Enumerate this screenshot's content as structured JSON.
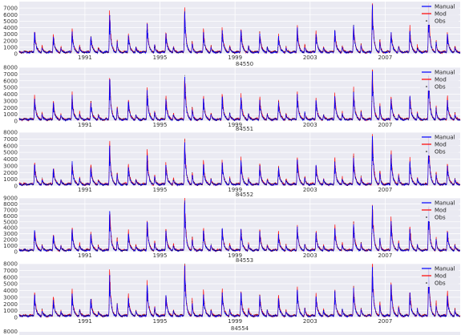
{
  "colors": {
    "background": "#eaeaf2",
    "grid": "#ffffff",
    "manual": "#0000ff",
    "mod": "#ff0000",
    "obs": "#000000"
  },
  "chart_data": [
    {
      "type": "line",
      "title": "",
      "ylim": [
        0,
        8000
      ],
      "ytick_labels": [
        "0",
        "1000",
        "2000",
        "3000",
        "4000",
        "5000",
        "6000",
        "7000"
      ],
      "xlim": [
        1987.5,
        2011.0
      ],
      "xtick_labels": [
        "1991",
        "1995",
        "1999",
        "2003",
        "2007"
      ],
      "legend": {
        "placement": "top-right",
        "entries": [
          "Manual",
          "Mod",
          "Obs"
        ]
      },
      "grid": true,
      "annual_peaks": [
        {
          "year": 1988,
          "value": 3300
        },
        {
          "year": 1989,
          "value": 2600
        },
        {
          "year": 1990,
          "value": 3400
        },
        {
          "year": 1991,
          "value": 2600
        },
        {
          "year": 1992,
          "value": 5900
        },
        {
          "year": 1993,
          "value": 2800
        },
        {
          "year": 1994,
          "value": 4600
        },
        {
          "year": 1995,
          "value": 3100
        },
        {
          "year": 1996,
          "value": 6200
        },
        {
          "year": 1997,
          "value": 3300
        },
        {
          "year": 1998,
          "value": 3600
        },
        {
          "year": 1999,
          "value": 3600
        },
        {
          "year": 2000,
          "value": 3100
        },
        {
          "year": 2001,
          "value": 2700
        },
        {
          "year": 2002,
          "value": 3900
        },
        {
          "year": 2003,
          "value": 3000
        },
        {
          "year": 2004,
          "value": 3600
        },
        {
          "year": 2005,
          "value": 4200
        },
        {
          "year": 2006,
          "value": 7300
        },
        {
          "year": 2007,
          "value": 3300
        },
        {
          "year": 2008,
          "value": 3500
        },
        {
          "year": 2009,
          "value": 6500
        },
        {
          "year": 2010,
          "value": 3000
        }
      ]
    },
    {
      "type": "line",
      "title": "84550",
      "ylim": [
        0,
        8000
      ],
      "ytick_labels": [
        "0",
        "1000",
        "2000",
        "3000",
        "4000",
        "5000",
        "6000",
        "7000",
        "8000"
      ],
      "xlim": [
        1987.5,
        2011.0
      ],
      "xtick_labels": [
        "1991",
        "1995",
        "1999",
        "2003",
        "2007"
      ],
      "legend": {
        "placement": "top-right",
        "entries": [
          "Manual",
          "Mod",
          "Obs"
        ]
      },
      "grid": true,
      "annual_peaks": [
        {
          "year": 1988,
          "value": 3300
        },
        {
          "year": 1989,
          "value": 2600
        },
        {
          "year": 1990,
          "value": 3500
        },
        {
          "year": 1991,
          "value": 2700
        },
        {
          "year": 1992,
          "value": 6200
        },
        {
          "year": 1993,
          "value": 2900
        },
        {
          "year": 1994,
          "value": 4600
        },
        {
          "year": 1995,
          "value": 3200
        },
        {
          "year": 1996,
          "value": 6600
        },
        {
          "year": 1997,
          "value": 3300
        },
        {
          "year": 1998,
          "value": 3600
        },
        {
          "year": 1999,
          "value": 3500
        },
        {
          "year": 2000,
          "value": 3100
        },
        {
          "year": 2001,
          "value": 2800
        },
        {
          "year": 2002,
          "value": 4000
        },
        {
          "year": 2003,
          "value": 3000
        },
        {
          "year": 2004,
          "value": 3700
        },
        {
          "year": 2005,
          "value": 4300
        },
        {
          "year": 2006,
          "value": 7400
        },
        {
          "year": 2007,
          "value": 3300
        },
        {
          "year": 2008,
          "value": 3600
        },
        {
          "year": 2009,
          "value": 6700
        },
        {
          "year": 2010,
          "value": 3100
        }
      ]
    },
    {
      "type": "line",
      "title": "84551",
      "ylim": [
        0,
        8000
      ],
      "ytick_labels": [
        "0",
        "1000",
        "2000",
        "3000",
        "4000",
        "5000",
        "6000",
        "7000",
        "8000"
      ],
      "xlim": [
        1987.5,
        2011.0
      ],
      "xtick_labels": [
        "1991",
        "1995",
        "1999",
        "2003",
        "2007"
      ],
      "legend": {
        "placement": "top-right",
        "entries": [
          "Manual",
          "Mod",
          "Obs"
        ]
      },
      "grid": true,
      "annual_peaks": [
        {
          "year": 1988,
          "value": 3200
        },
        {
          "year": 1989,
          "value": 2500
        },
        {
          "year": 1990,
          "value": 3400
        },
        {
          "year": 1991,
          "value": 2700
        },
        {
          "year": 1992,
          "value": 6000
        },
        {
          "year": 1993,
          "value": 2800
        },
        {
          "year": 1994,
          "value": 4500
        },
        {
          "year": 1995,
          "value": 3100
        },
        {
          "year": 1996,
          "value": 6500
        },
        {
          "year": 1997,
          "value": 3200
        },
        {
          "year": 1998,
          "value": 3500
        },
        {
          "year": 1999,
          "value": 3500
        },
        {
          "year": 2000,
          "value": 3000
        },
        {
          "year": 2001,
          "value": 2700
        },
        {
          "year": 2002,
          "value": 3900
        },
        {
          "year": 2003,
          "value": 3000
        },
        {
          "year": 2004,
          "value": 3600
        },
        {
          "year": 2005,
          "value": 4200
        },
        {
          "year": 2006,
          "value": 7400
        },
        {
          "year": 2007,
          "value": 4700
        },
        {
          "year": 2008,
          "value": 3500
        },
        {
          "year": 2009,
          "value": 6600
        },
        {
          "year": 2010,
          "value": 3000
        }
      ]
    },
    {
      "type": "line",
      "title": "84552",
      "ylim": [
        0,
        9000
      ],
      "ytick_labels": [
        "0",
        "1000",
        "2000",
        "3000",
        "4000",
        "5000",
        "6000",
        "7000",
        "8000",
        "9000"
      ],
      "xlim": [
        1987.5,
        2011.0
      ],
      "xtick_labels": [
        "1991",
        "1995",
        "1999",
        "2003",
        "2007"
      ],
      "legend": {
        "placement": "top-right",
        "entries": [
          "Manual",
          "Mod",
          "Obs"
        ]
      },
      "grid": true,
      "annual_peaks": [
        {
          "year": 1988,
          "value": 3500
        },
        {
          "year": 1989,
          "value": 2700
        },
        {
          "year": 1990,
          "value": 3600
        },
        {
          "year": 1991,
          "value": 2800
        },
        {
          "year": 1992,
          "value": 6800
        },
        {
          "year": 1993,
          "value": 3000
        },
        {
          "year": 1994,
          "value": 5000
        },
        {
          "year": 1995,
          "value": 3400
        },
        {
          "year": 1996,
          "value": 8000
        },
        {
          "year": 1997,
          "value": 3500
        },
        {
          "year": 1998,
          "value": 3800
        },
        {
          "year": 1999,
          "value": 3800
        },
        {
          "year": 2000,
          "value": 3300
        },
        {
          "year": 2001,
          "value": 2900
        },
        {
          "year": 2002,
          "value": 4200
        },
        {
          "year": 2003,
          "value": 3200
        },
        {
          "year": 2004,
          "value": 3900
        },
        {
          "year": 2005,
          "value": 4600
        },
        {
          "year": 2006,
          "value": 7700
        },
        {
          "year": 2007,
          "value": 5100
        },
        {
          "year": 2008,
          "value": 3800
        },
        {
          "year": 2009,
          "value": 7300
        },
        {
          "year": 2010,
          "value": 3300
        }
      ]
    },
    {
      "type": "line",
      "title": "84553",
      "ylim": [
        0,
        8000
      ],
      "ytick_labels": [
        "0",
        "1000",
        "2000",
        "3000",
        "4000",
        "5000",
        "6000",
        "7000",
        "8000"
      ],
      "xlim": [
        1987.5,
        2011.0
      ],
      "xtick_labels": [
        "1991",
        "1995",
        "1999",
        "2003",
        "2007"
      ],
      "legend": {
        "placement": "top-right",
        "entries": [
          "Manual",
          "Mod",
          "Obs"
        ]
      },
      "grid": true,
      "annual_peaks": [
        {
          "year": 1988,
          "value": 3400
        },
        {
          "year": 1989,
          "value": 2600
        },
        {
          "year": 1990,
          "value": 3500
        },
        {
          "year": 1991,
          "value": 2700
        },
        {
          "year": 1992,
          "value": 6300
        },
        {
          "year": 1993,
          "value": 2900
        },
        {
          "year": 1994,
          "value": 4800
        },
        {
          "year": 1995,
          "value": 3300
        },
        {
          "year": 1996,
          "value": 7700
        },
        {
          "year": 1997,
          "value": 3400
        },
        {
          "year": 1998,
          "value": 3700
        },
        {
          "year": 1999,
          "value": 3600
        },
        {
          "year": 2000,
          "value": 3200
        },
        {
          "year": 2001,
          "value": 2800
        },
        {
          "year": 2002,
          "value": 4100
        },
        {
          "year": 2003,
          "value": 3100
        },
        {
          "year": 2004,
          "value": 3800
        },
        {
          "year": 2005,
          "value": 4400
        },
        {
          "year": 2006,
          "value": 7500
        },
        {
          "year": 2007,
          "value": 4900
        },
        {
          "year": 2008,
          "value": 3700
        },
        {
          "year": 2009,
          "value": 7100
        },
        {
          "year": 2010,
          "value": 3200
        }
      ]
    }
  ],
  "cut_off": {
    "title": "84554",
    "ytick_label": "8000"
  }
}
